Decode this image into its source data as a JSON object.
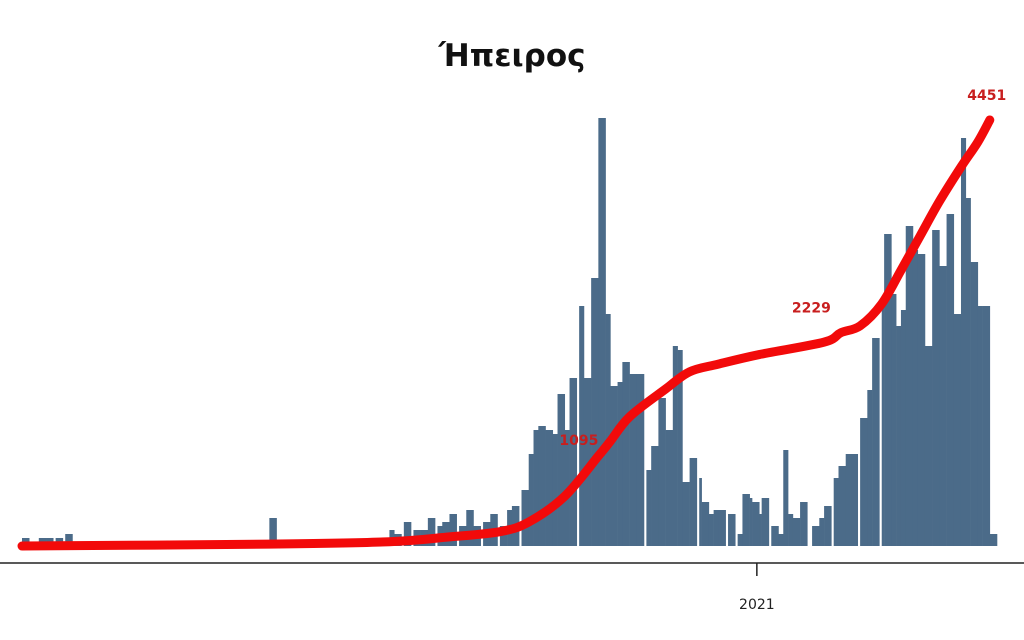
{
  "chart_data": {
    "type": "bar+line",
    "title": "Ήπειρος",
    "xlabel": "",
    "ylabel": "",
    "grid": false,
    "legend": "none",
    "x_ticks": [
      {
        "date": "2021-01-01",
        "label": "2021"
      }
    ],
    "xlim": [
      "2020-03-01",
      "2021-04-11"
    ],
    "colors": {
      "bars": "#4b6b89",
      "line": "#f20a0a",
      "labels": "#c81e1e",
      "axis": "#222222"
    },
    "bars": {
      "ylim": [
        0,
        108
      ],
      "points": [
        [
          "2020-03-01",
          2
        ],
        [
          "2020-03-04",
          1
        ],
        [
          "2020-03-08",
          2
        ],
        [
          "2020-03-11",
          2
        ],
        [
          "2020-03-15",
          2
        ],
        [
          "2020-03-19",
          3
        ],
        [
          "2020-06-12",
          7
        ],
        [
          "2020-08-01",
          4
        ],
        [
          "2020-08-03",
          3
        ],
        [
          "2020-08-07",
          6
        ],
        [
          "2020-08-11",
          4
        ],
        [
          "2020-08-14",
          4
        ],
        [
          "2020-08-17",
          7
        ],
        [
          "2020-08-21",
          5
        ],
        [
          "2020-08-23",
          6
        ],
        [
          "2020-08-26",
          8
        ],
        [
          "2020-08-30",
          5
        ],
        [
          "2020-09-02",
          9
        ],
        [
          "2020-09-05",
          5
        ],
        [
          "2020-09-09",
          6
        ],
        [
          "2020-09-12",
          8
        ],
        [
          "2020-09-16",
          5
        ],
        [
          "2020-09-19",
          9
        ],
        [
          "2020-09-21",
          10
        ],
        [
          "2020-09-25",
          14
        ],
        [
          "2020-09-28",
          23
        ],
        [
          "2020-09-30",
          29
        ],
        [
          "2020-10-02",
          30
        ],
        [
          "2020-10-05",
          29
        ],
        [
          "2020-10-08",
          28
        ],
        [
          "2020-10-10",
          38
        ],
        [
          "2020-10-13",
          29
        ],
        [
          "2020-10-15",
          42
        ],
        [
          "2020-10-19",
          60
        ],
        [
          "2020-10-21",
          42
        ],
        [
          "2020-10-24",
          67
        ],
        [
          "2020-10-27",
          107
        ],
        [
          "2020-10-30",
          58
        ],
        [
          "2020-11-01",
          40
        ],
        [
          "2020-11-04",
          41
        ],
        [
          "2020-11-06",
          46
        ],
        [
          "2020-11-09",
          43
        ],
        [
          "2020-11-12",
          43
        ],
        [
          "2020-11-16",
          19
        ],
        [
          "2020-11-18",
          25
        ],
        [
          "2020-11-21",
          37
        ],
        [
          "2020-11-24",
          29
        ],
        [
          "2020-11-27",
          50
        ],
        [
          "2020-11-29",
          49
        ],
        [
          "2020-12-01",
          16
        ],
        [
          "2020-12-04",
          22
        ],
        [
          "2020-12-08",
          17
        ],
        [
          "2020-12-09",
          11
        ],
        [
          "2020-12-12",
          8
        ],
        [
          "2020-12-14",
          9
        ],
        [
          "2020-12-16",
          9
        ],
        [
          "2020-12-20",
          8
        ],
        [
          "2020-12-24",
          3
        ],
        [
          "2020-12-26",
          13
        ],
        [
          "2020-12-29",
          12
        ],
        [
          "2020-12-30",
          11
        ],
        [
          "2021-01-02",
          8
        ],
        [
          "2021-01-03",
          12
        ],
        [
          "2021-01-07",
          5
        ],
        [
          "2021-01-10",
          3
        ],
        [
          "2021-01-12",
          24
        ],
        [
          "2021-01-14",
          8
        ],
        [
          "2021-01-16",
          7
        ],
        [
          "2021-01-19",
          11
        ],
        [
          "2021-01-24",
          5
        ],
        [
          "2021-01-27",
          7
        ],
        [
          "2021-01-29",
          10
        ],
        [
          "2021-02-02",
          17
        ],
        [
          "2021-02-04",
          20
        ],
        [
          "2021-02-07",
          23
        ],
        [
          "2021-02-09",
          23
        ],
        [
          "2021-02-13",
          32
        ],
        [
          "2021-02-16",
          39
        ],
        [
          "2021-02-18",
          52
        ],
        [
          "2021-02-22",
          62
        ],
        [
          "2021-02-23",
          78
        ],
        [
          "2021-02-26",
          63
        ],
        [
          "2021-02-28",
          55
        ],
        [
          "2021-03-02",
          59
        ],
        [
          "2021-03-04",
          80
        ],
        [
          "2021-03-07",
          74
        ],
        [
          "2021-03-09",
          73
        ],
        [
          "2021-03-12",
          50
        ],
        [
          "2021-03-15",
          79
        ],
        [
          "2021-03-18",
          70
        ],
        [
          "2021-03-21",
          83
        ],
        [
          "2021-03-24",
          58
        ],
        [
          "2021-03-27",
          102
        ],
        [
          "2021-03-29",
          87
        ],
        [
          "2021-03-31",
          71
        ],
        [
          "2021-04-03",
          60
        ],
        [
          "2021-04-05",
          60
        ],
        [
          "2021-04-08",
          3
        ]
      ]
    },
    "cumulative_line": {
      "ylim": [
        0,
        4451
      ],
      "points": [
        [
          "2020-03-01",
          0
        ],
        [
          "2020-06-12",
          20
        ],
        [
          "2020-08-01",
          45
        ],
        [
          "2020-08-26",
          95
        ],
        [
          "2020-09-16",
          150
        ],
        [
          "2020-09-28",
          250
        ],
        [
          "2020-10-13",
          520
        ],
        [
          "2020-10-27",
          940
        ],
        [
          "2020-11-01",
          1095
        ],
        [
          "2020-11-09",
          1350
        ],
        [
          "2020-11-24",
          1640
        ],
        [
          "2020-12-04",
          1820
        ],
        [
          "2020-12-16",
          1900
        ],
        [
          "2021-01-02",
          2000
        ],
        [
          "2021-01-29",
          2130
        ],
        [
          "2021-02-05",
          2229
        ],
        [
          "2021-02-13",
          2300
        ],
        [
          "2021-02-22",
          2530
        ],
        [
          "2021-03-02",
          2880
        ],
        [
          "2021-03-10",
          3240
        ],
        [
          "2021-03-18",
          3600
        ],
        [
          "2021-03-27",
          3960
        ],
        [
          "2021-04-03",
          4220
        ],
        [
          "2021-04-08",
          4451
        ]
      ],
      "labels": [
        {
          "date": "2020-11-01",
          "value": 1095,
          "text": "1095"
        },
        {
          "date": "2021-02-05",
          "value": 2229,
          "text": "2229"
        },
        {
          "date": "2021-04-08",
          "value": 4451,
          "text": "4451"
        }
      ]
    }
  }
}
